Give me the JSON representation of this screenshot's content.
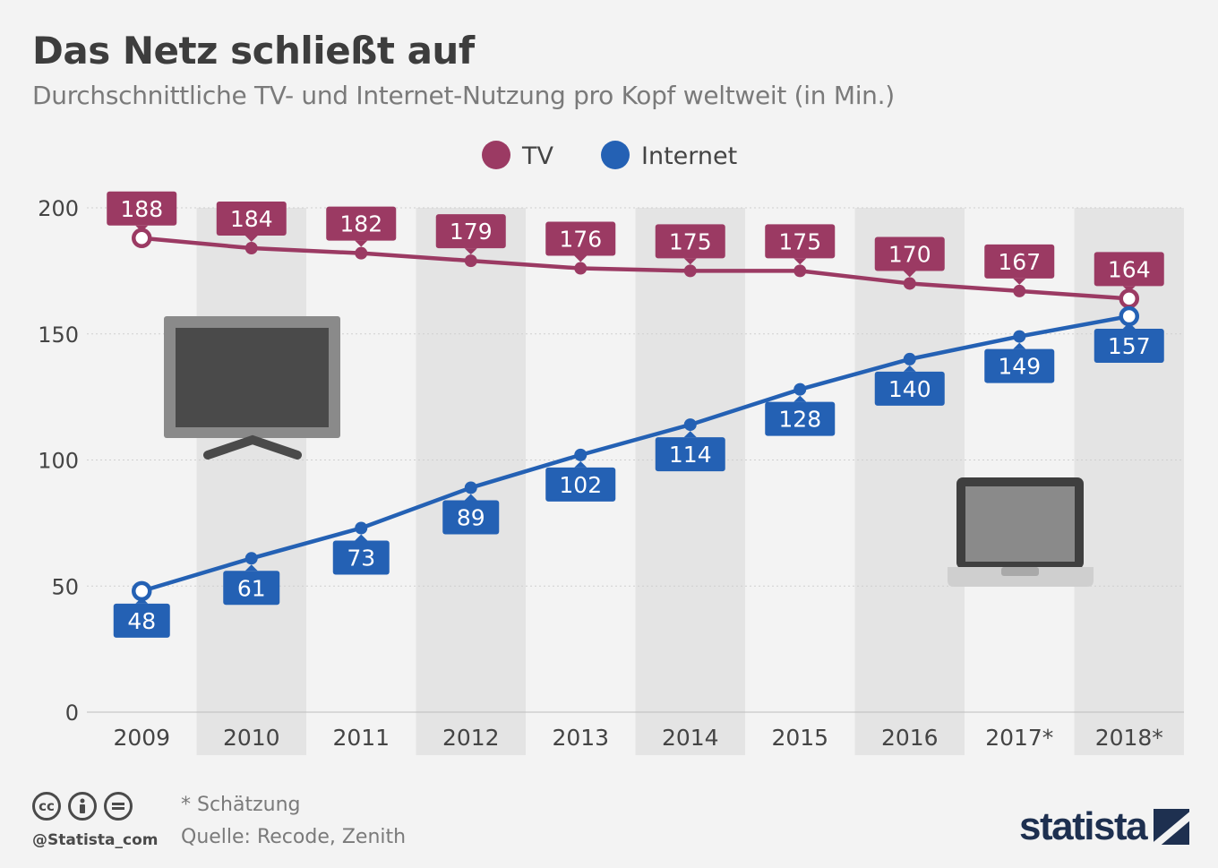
{
  "header": {
    "title": "Das Netz schließt auf",
    "subtitle": "Durchschnittliche TV- und Internet-Nutzung pro Kopf weltweit (in Min.)"
  },
  "colors": {
    "tv": "#9b3a63",
    "internet": "#2461b4",
    "band": "#e4e4e4",
    "background": "#f3f3f3"
  },
  "chart_data": {
    "type": "line",
    "categories": [
      "2009",
      "2010",
      "2011",
      "2012",
      "2013",
      "2014",
      "2015",
      "2016",
      "2017*",
      "2018*"
    ],
    "series": [
      {
        "name": "TV",
        "color": "#9b3a63",
        "values": [
          188,
          184,
          182,
          179,
          176,
          175,
          175,
          170,
          167,
          164
        ]
      },
      {
        "name": "Internet",
        "color": "#2461b4",
        "values": [
          48,
          61,
          73,
          89,
          102,
          114,
          128,
          140,
          149,
          157
        ]
      }
    ],
    "ylim": [
      0,
      200
    ],
    "yticks": [
      0,
      50,
      100,
      150,
      200
    ],
    "grid": true,
    "legend": "top-center",
    "icons": [
      "tv-icon",
      "laptop-icon"
    ]
  },
  "footer": {
    "note": "* Schätzung",
    "source": "Quelle: Recode, Zenith",
    "handle": "@Statista_com",
    "brand": "statista",
    "license_icons": [
      "cc-icon",
      "by-icon",
      "nd-icon"
    ]
  }
}
